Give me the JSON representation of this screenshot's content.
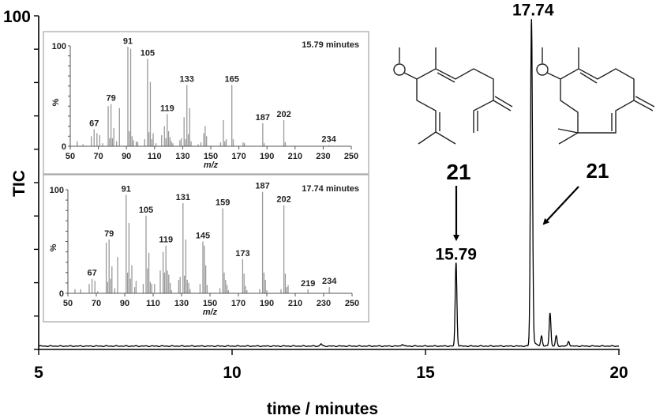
{
  "chart_data": {
    "type": "line",
    "title": "",
    "xlabel": "time / minutes",
    "ylabel": "TIC",
    "xlim": [
      5,
      20
    ],
    "ylim": [
      0,
      100
    ],
    "x_ticks": [
      "5",
      "10",
      "15",
      "20"
    ],
    "y_ticks": [
      "100"
    ],
    "baseline": 1,
    "peaks": [
      {
        "rt": 15.79,
        "height": 25,
        "label": "15.79",
        "compound": "21"
      },
      {
        "rt": 17.74,
        "height": 98,
        "label": "17.74",
        "compound": "21"
      },
      {
        "rt": 18.0,
        "height": 3
      },
      {
        "rt": 18.22,
        "height": 10
      },
      {
        "rt": 18.38,
        "height": 3
      },
      {
        "rt": 18.7,
        "height": 1.5
      },
      {
        "rt": 12.3,
        "height": 0.7
      },
      {
        "rt": 14.4,
        "height": 0.6
      }
    ],
    "insets": [
      {
        "type": "bar",
        "title": "15.79 minutes",
        "xlabel": "m/z",
        "ylabel": "%",
        "xlim": [
          50,
          250
        ],
        "ylim": [
          0,
          100
        ],
        "x_ticks": [
          "50",
          "70",
          "90",
          "110",
          "130",
          "150",
          "170",
          "190",
          "210",
          "230",
          "250"
        ],
        "y_ticks": [
          "0",
          "100"
        ],
        "labels": [
          67,
          79,
          91,
          105,
          119,
          133,
          165,
          187,
          202,
          234
        ],
        "mz": [
          55,
          59,
          65,
          67,
          69,
          71,
          73,
          77,
          78,
          79,
          80,
          81,
          83,
          85,
          91,
          92,
          93,
          94,
          95,
          97,
          98,
          103,
          105,
          106,
          107,
          108,
          109,
          111,
          115,
          117,
          118,
          119,
          120,
          121,
          122,
          123,
          128,
          129,
          131,
          132,
          133,
          134,
          135,
          136,
          141,
          143,
          145,
          146,
          147,
          157,
          159,
          160,
          161,
          165,
          166,
          173,
          174,
          187,
          188,
          202,
          203,
          234
        ],
        "intensity": [
          5,
          2,
          10,
          17,
          13,
          11,
          3,
          40,
          8,
          42,
          8,
          18,
          5,
          38,
          99,
          15,
          97,
          10,
          6,
          5,
          4,
          7,
          87,
          14,
          64,
          7,
          13,
          3,
          11,
          20,
          8,
          32,
          15,
          9,
          5,
          3,
          6,
          8,
          29,
          7,
          61,
          12,
          38,
          5,
          2,
          4,
          13,
          20,
          10,
          4,
          26,
          5,
          7,
          61,
          7,
          4,
          3,
          23,
          3,
          26,
          4,
          1
        ]
      },
      {
        "type": "bar",
        "title": "17.74 minutes",
        "xlabel": "m/z",
        "ylabel": "%",
        "xlim": [
          50,
          250
        ],
        "ylim": [
          0,
          100
        ],
        "x_ticks": [
          "50",
          "70",
          "90",
          "110",
          "130",
          "150",
          "170",
          "190",
          "210",
          "230",
          "250"
        ],
        "y_ticks": [
          "0",
          "100"
        ],
        "labels": [
          67,
          79,
          91,
          105,
          119,
          131,
          145,
          159,
          173,
          187,
          202,
          219,
          234
        ],
        "mz": [
          55,
          59,
          65,
          67,
          69,
          71,
          77,
          78,
          79,
          80,
          81,
          83,
          85,
          91,
          92,
          93,
          94,
          95,
          97,
          98,
          103,
          105,
          106,
          107,
          108,
          109,
          111,
          115,
          117,
          118,
          119,
          120,
          121,
          122,
          123,
          128,
          129,
          131,
          132,
          133,
          134,
          135,
          136,
          143,
          145,
          146,
          147,
          148,
          157,
          159,
          160,
          161,
          162,
          163,
          173,
          174,
          175,
          176,
          185,
          187,
          188,
          189,
          190,
          200,
          202,
          203,
          204,
          205,
          219,
          234
        ],
        "intensity": [
          4,
          4,
          9,
          14,
          12,
          2,
          49,
          11,
          52,
          14,
          26,
          5,
          35,
          95,
          20,
          68,
          14,
          27,
          6,
          12,
          9,
          75,
          24,
          39,
          11,
          9,
          9,
          22,
          40,
          20,
          46,
          22,
          18,
          10,
          3,
          13,
          16,
          87,
          17,
          52,
          13,
          10,
          4,
          9,
          50,
          46,
          27,
          8,
          5,
          82,
          20,
          13,
          8,
          3,
          33,
          19,
          7,
          3,
          4,
          98,
          20,
          13,
          3,
          4,
          85,
          19,
          6,
          8,
          4,
          6
        ]
      }
    ]
  }
}
